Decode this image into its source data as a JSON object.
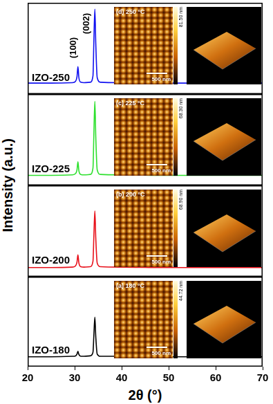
{
  "chart_data": [
    {
      "type": "line",
      "y_label": "Intensity (a.u.)",
      "x": [
        20,
        25,
        29.5,
        30.2,
        30.5,
        30.7,
        30.9,
        31.3,
        32,
        33.3,
        33.9,
        34.1,
        34.3,
        34.5,
        34.8,
        35.5,
        40,
        50,
        60,
        70
      ],
      "xlim": [
        20,
        70
      ],
      "ylim": [
        0,
        100
      ],
      "tick_labels": false,
      "series": [
        {
          "name": "IZO-250",
          "color": "#1010f0",
          "marker": "none",
          "values": [
            12,
            12,
            12.5,
            14,
            19,
            30,
            18,
            13,
            12.5,
            13,
            20,
            60,
            93,
            55,
            18,
            13,
            12.5,
            12,
            12,
            12
          ]
        }
      ],
      "annotations": [
        {
          "text": "(100)",
          "x": 30.7
        },
        {
          "text": "(002)",
          "x": 34.3
        }
      ],
      "inset": {
        "label": "(d) 250 °C",
        "scale_bar": "500 nm",
        "colorbar_max": "81.50 nm"
      }
    },
    {
      "type": "line",
      "x": [
        20,
        25,
        29.5,
        30.2,
        30.5,
        30.7,
        30.9,
        31.3,
        32,
        33.3,
        33.9,
        34.1,
        34.3,
        34.5,
        34.8,
        35.5,
        40,
        50,
        60,
        70
      ],
      "xlim": [
        20,
        70
      ],
      "ylim": [
        0,
        100
      ],
      "tick_labels": false,
      "series": [
        {
          "name": "IZO-225",
          "color": "#2ee02e",
          "marker": "none",
          "values": [
            11,
            11,
            11.5,
            13,
            17,
            26,
            16,
            12,
            11.5,
            12,
            19,
            58,
            92,
            53,
            17,
            12,
            11.5,
            11,
            11,
            11
          ]
        }
      ],
      "inset": {
        "label": "(c) 225 °C",
        "scale_bar": "500 nm",
        "colorbar_max": "68.30 nm"
      }
    },
    {
      "type": "line",
      "x": [
        20,
        25,
        29.5,
        30.2,
        30.5,
        30.7,
        30.9,
        31.3,
        32,
        33.3,
        33.9,
        34.1,
        34.3,
        34.5,
        34.8,
        35.5,
        40,
        50,
        60,
        70
      ],
      "xlim": [
        20,
        70
      ],
      "ylim": [
        0,
        100
      ],
      "tick_labels": false,
      "series": [
        {
          "name": "IZO-200",
          "color": "#e8101a",
          "marker": "none",
          "values": [
            10,
            10,
            10.5,
            12,
            16,
            24,
            15,
            11,
            10.5,
            11,
            17,
            46,
            72,
            42,
            15,
            11,
            10.5,
            10,
            10,
            10
          ]
        }
      ],
      "inset": {
        "label": "(b) 200 °C",
        "scale_bar": "500 nm",
        "colorbar_max": "68.90 nm"
      }
    },
    {
      "type": "line",
      "x_label": "2θ (°)",
      "x": [
        20,
        25,
        29.5,
        30.2,
        30.5,
        30.7,
        30.9,
        31.3,
        32,
        33.3,
        33.9,
        34.1,
        34.3,
        34.5,
        34.8,
        35.5,
        40,
        50,
        60,
        70
      ],
      "xlim": [
        20,
        70
      ],
      "xticks": [
        20,
        30,
        40,
        50,
        60,
        70
      ],
      "ylim": [
        0,
        100
      ],
      "tick_labels": "x",
      "series": [
        {
          "name": "IZO-180",
          "color": "#000000",
          "marker": "none",
          "values": [
            11,
            11,
            11.5,
            12,
            14,
            17,
            13.5,
            11.5,
            11.5,
            12,
            16,
            36,
            55,
            33,
            14,
            11.5,
            11.5,
            11,
            11,
            11
          ]
        }
      ],
      "inset": {
        "label": "(a) 180 °C",
        "scale_bar": "500 nm",
        "colorbar_max": "44.72 nm"
      }
    }
  ]
}
